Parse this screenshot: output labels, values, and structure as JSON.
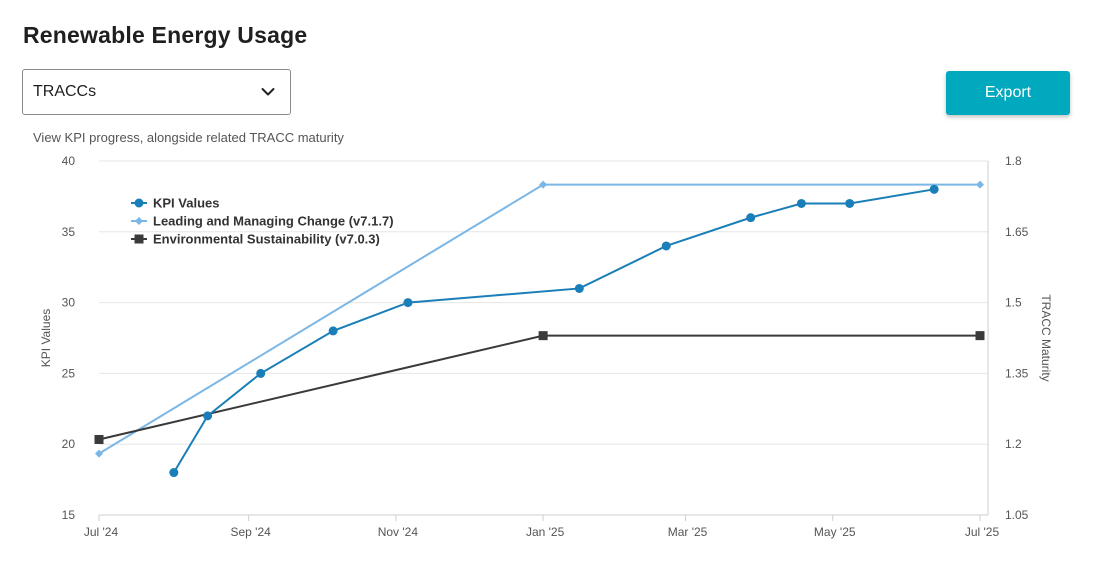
{
  "page": {
    "title": "Renewable Energy Usage",
    "subtitle": "View KPI progress, alongside related TRACC maturity"
  },
  "dropdown": {
    "selected": "TRACCs",
    "icon": "chevron-down-icon"
  },
  "toolbar": {
    "export_label": "Export"
  },
  "colors": {
    "kpi": "#1a7fb8",
    "leading": "#7ab6e6",
    "environmental": "#3a3a3a",
    "export_button": "#00a9bd"
  },
  "chart_data": {
    "type": "line",
    "ylabel": "KPI Values",
    "y2label": "TRACC Maturity",
    "ylim": [
      15,
      40
    ],
    "y2lim": [
      1.05,
      1.8
    ],
    "yticks": [
      "15",
      "20",
      "25",
      "30",
      "35",
      "40"
    ],
    "y2ticks": [
      "1.05",
      "1.2",
      "1.35",
      "1.5",
      "1.65",
      "1.8"
    ],
    "xlim": [
      "2024-07-01",
      "2025-07-01"
    ],
    "xticks": [
      {
        "label": "Jul '24",
        "date": "2024-07-01"
      },
      {
        "label": "Sep '24",
        "date": "2024-09-01"
      },
      {
        "label": "Nov '24",
        "date": "2024-11-01"
      },
      {
        "label": "Jan '25",
        "date": "2025-01-01"
      },
      {
        "label": "Mar '25",
        "date": "2025-03-01"
      },
      {
        "label": "May '25",
        "date": "2025-05-01"
      },
      {
        "label": "Jul '25",
        "date": "2025-07-01"
      }
    ],
    "grid": true,
    "legend_position": "top-left",
    "series": [
      {
        "name": "KPI Values",
        "axis": "left",
        "marker": "circle",
        "points": [
          {
            "date": "2024-08-01",
            "value": 18
          },
          {
            "date": "2024-08-15",
            "value": 22
          },
          {
            "date": "2024-09-06",
            "value": 25
          },
          {
            "date": "2024-10-06",
            "value": 28
          },
          {
            "date": "2024-11-06",
            "value": 30
          },
          {
            "date": "2025-01-16",
            "value": 31
          },
          {
            "date": "2025-02-21",
            "value": 34
          },
          {
            "date": "2025-03-28",
            "value": 36
          },
          {
            "date": "2025-04-18",
            "value": 37
          },
          {
            "date": "2025-05-08",
            "value": 37
          },
          {
            "date": "2025-06-12",
            "value": 38
          }
        ]
      },
      {
        "name": "Leading and Managing Change (v7.1.7)",
        "axis": "right",
        "marker": "diamond",
        "points": [
          {
            "date": "2024-07-01",
            "value": 1.18
          },
          {
            "date": "2025-01-01",
            "value": 1.75
          },
          {
            "date": "2025-07-01",
            "value": 1.75
          }
        ]
      },
      {
        "name": "Environmental Sustainability (v7.0.3)",
        "axis": "right",
        "marker": "square",
        "points": [
          {
            "date": "2024-07-01",
            "value": 1.21
          },
          {
            "date": "2025-01-01",
            "value": 1.43
          },
          {
            "date": "2025-07-01",
            "value": 1.43
          }
        ]
      }
    ]
  }
}
